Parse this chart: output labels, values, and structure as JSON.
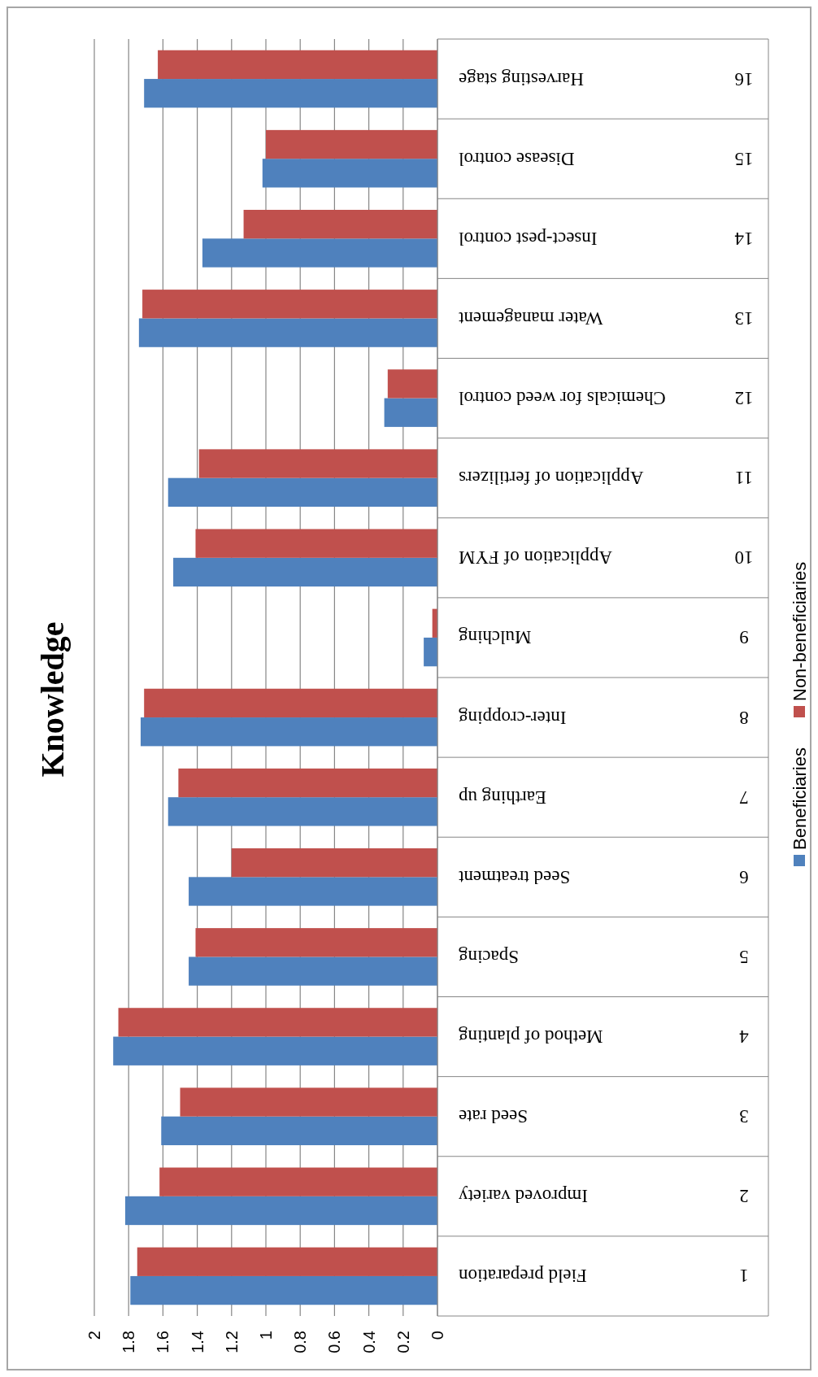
{
  "chart_data": {
    "type": "bar",
    "orientation": "horizontal",
    "title": "Knowledge",
    "categories": [
      "Harvesting stage",
      "Disease control",
      "Insect-pest control",
      "Water management",
      "Chemicals for weed control",
      "Application of fertilizers",
      "Application of FYM",
      "Mulching",
      "Inter-cropping",
      "Earthing up",
      "Seed treatment",
      "Spacing",
      "Method of planting",
      "Seed rate",
      "Improved variety",
      "Field preparation"
    ],
    "series": [
      {
        "name": "Beneficiaries",
        "color": "#4f81bd",
        "values": [
          1.71,
          1.02,
          1.37,
          1.74,
          0.31,
          1.57,
          1.54,
          0.08,
          1.73,
          1.57,
          1.45,
          1.45,
          1.89,
          1.61,
          1.82,
          1.79
        ]
      },
      {
        "name": "Non-beneficiaries",
        "color": "#c0504d",
        "values": [
          1.63,
          1.0,
          1.13,
          1.72,
          0.29,
          1.39,
          1.41,
          0.03,
          1.71,
          1.51,
          1.2,
          1.41,
          1.86,
          1.5,
          1.62,
          1.75
        ]
      }
    ],
    "xlim": [
      2,
      0
    ],
    "xticks": [
      0,
      0.2,
      0.4,
      0.6,
      0.8,
      1,
      1.2,
      1.4,
      1.6,
      1.8,
      2
    ],
    "grid": "x",
    "legend": "right",
    "annotations": [
      "16",
      "15",
      "14",
      "13",
      "12",
      "11",
      "10",
      "9",
      "8",
      "7",
      "6",
      "5",
      "4",
      "3",
      "2",
      "1"
    ]
  }
}
